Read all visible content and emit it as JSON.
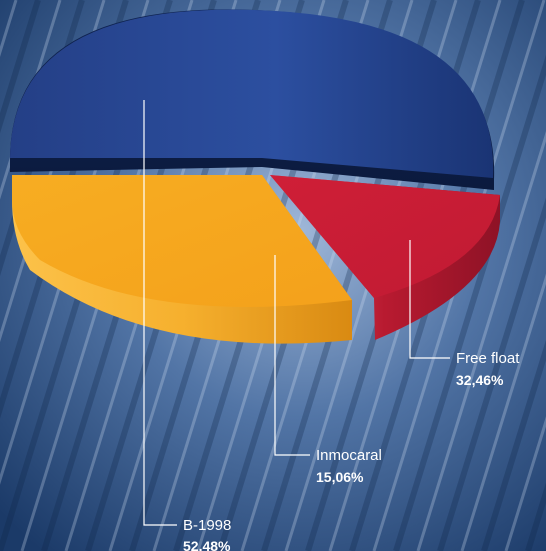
{
  "chart_data": {
    "type": "pie",
    "title": "",
    "slices": [
      {
        "name": "B-1998",
        "value_label": "52,48%",
        "value": 52.48,
        "color": "#1f3f8c"
      },
      {
        "name": "Inmocaral",
        "value_label": "15,06%",
        "value": 15.06,
        "color": "#f5a91c"
      },
      {
        "name": "Free float",
        "value_label": "32,46%",
        "value": 32.46,
        "color": "#d0203c"
      }
    ],
    "legend": "callout labels with leader lines",
    "background_color": "#24497c"
  }
}
